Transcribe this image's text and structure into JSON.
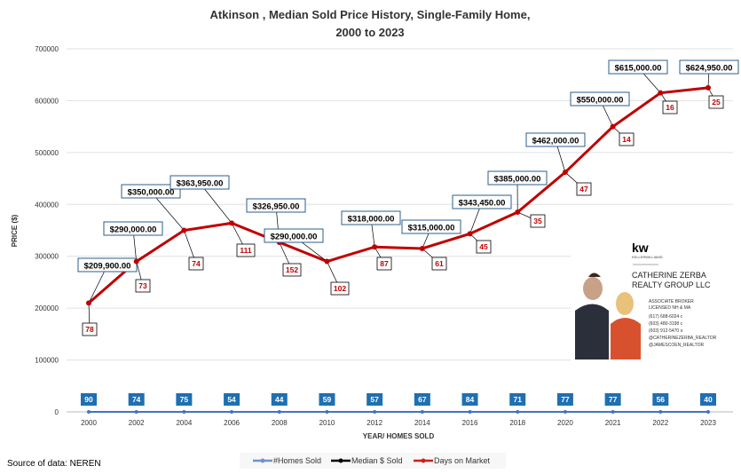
{
  "chart_data": {
    "type": "line",
    "title": [
      "Atkinson , Median Sold Price History, Single-Family Home,",
      "2000 to 2023"
    ],
    "xlabel": "YEAR/ HOMES SOLD",
    "ylabel": "PRICE ($)",
    "ylim": [
      0,
      700000
    ],
    "yticks": [
      "0",
      "100000",
      "200000",
      "300000",
      "400000",
      "500000",
      "600000",
      "700000"
    ],
    "grid": true,
    "legend_position": "bottom",
    "categories": [
      "2000",
      "2002",
      "2004",
      "2006",
      "2008",
      "2010",
      "2012",
      "2014",
      "2016",
      "2018",
      "2020",
      "2021",
      "2022",
      "2023"
    ],
    "series": [
      {
        "name": "#Homes Sold",
        "color": "#4472c4",
        "values": [
          90,
          74,
          75,
          54,
          44,
          59,
          57,
          67,
          84,
          71,
          77,
          77,
          56,
          40
        ]
      },
      {
        "name": "Median $ Sold",
        "color": "#000000",
        "values": [
          209900,
          290000,
          350000,
          363950,
          326950,
          290000,
          318000,
          315000,
          343450,
          385000,
          462000,
          550000,
          615000,
          624950
        ]
      },
      {
        "name": "Days on Market",
        "color": "#c00000",
        "values": [
          78,
          73,
          74,
          111,
          152,
          102,
          87,
          61,
          45,
          35,
          47,
          14,
          16,
          25
        ]
      }
    ],
    "price_labels": [
      "$209,900.00",
      "$290,000.00",
      "$350,000.00",
      "$363,950.00",
      "$326,950.00",
      "$290,000.00",
      "$318,000.00",
      "$315,000.00",
      "$343,450.00",
      "$385,000.00",
      "$462,000.00",
      "$550,000.00",
      "$615,000.00",
      "$624,950.00"
    ]
  },
  "source": "Source of data: NEREN",
  "branding": {
    "logo": "kw GATEWAY REALTY KELLERWILLIAMS.",
    "company": [
      "CATHERINE ZERBA",
      "REALTY GROUP LLC"
    ],
    "details": [
      "ASSOCIATE BROKER",
      "LICENSED NH & MA",
      "(617) 688-6024 c",
      "(603) 480-3198 c",
      "(603) 912-5470 o",
      "@CATHERINEZERBA_REALTOR",
      "@JAMESCOEN_REALTOR"
    ]
  }
}
